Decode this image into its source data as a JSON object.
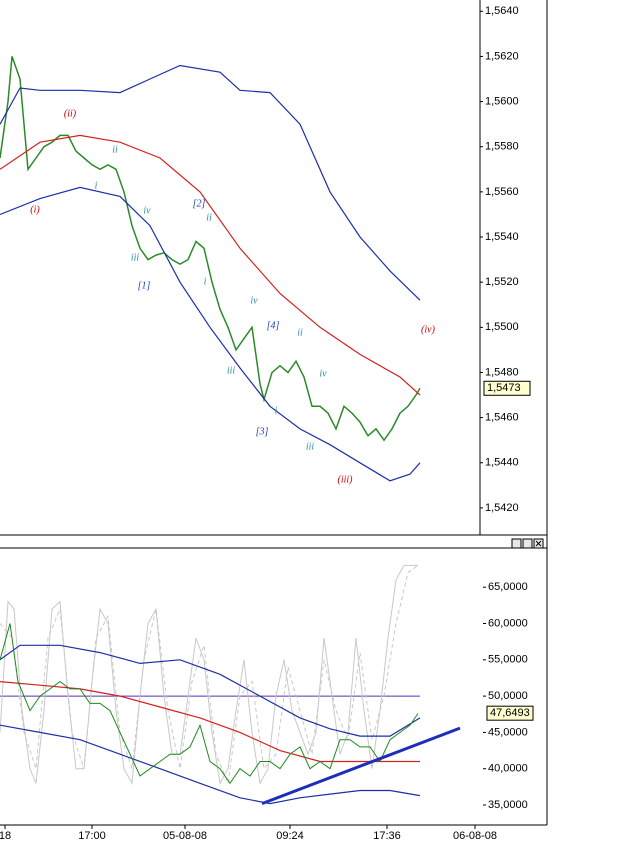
{
  "chart_data": [
    {
      "type": "line",
      "xlim": [
        0,
        480
      ],
      "ylim": [
        1.5408,
        1.5645
      ],
      "yticks": [
        {
          "value": 1.564,
          "label": "1,5640"
        },
        {
          "value": 1.562,
          "label": "1,5620"
        },
        {
          "value": 1.56,
          "label": "1,5600"
        },
        {
          "value": 1.558,
          "label": "1,5580"
        },
        {
          "value": 1.556,
          "label": "1,5560"
        },
        {
          "value": 1.554,
          "label": "1,5540"
        },
        {
          "value": 1.552,
          "label": "1,5520"
        },
        {
          "value": 1.55,
          "label": "1,5500"
        },
        {
          "value": 1.548,
          "label": "1,5480"
        },
        {
          "value": 1.546,
          "label": "1,5460"
        },
        {
          "value": 1.544,
          "label": "1,5440"
        },
        {
          "value": 1.542,
          "label": "1,5420"
        }
      ],
      "series": [
        {
          "color": "#2a8a2a",
          "width": 1.5,
          "x": [
            0,
            8,
            12,
            20,
            28,
            36,
            44,
            52,
            60,
            68,
            76,
            84,
            92,
            100,
            108,
            116,
            124,
            132,
            140,
            148,
            156,
            164,
            172,
            180,
            188,
            196,
            204,
            212,
            220,
            228,
            236,
            244,
            252,
            260,
            264,
            272,
            280,
            288,
            296,
            304,
            312,
            320,
            328,
            336,
            344,
            352,
            360,
            368,
            376,
            384,
            392,
            400,
            408,
            416,
            420
          ],
          "values": [
            1.5575,
            1.56,
            1.562,
            1.561,
            1.557,
            1.5575,
            1.558,
            1.5582,
            1.5585,
            1.5585,
            1.5578,
            1.5575,
            1.5572,
            1.557,
            1.5572,
            1.557,
            1.556,
            1.5545,
            1.5535,
            1.553,
            1.5532,
            1.5533,
            1.553,
            1.5528,
            1.553,
            1.5538,
            1.5535,
            1.552,
            1.5508,
            1.55,
            1.549,
            1.5495,
            1.55,
            1.5475,
            1.5468,
            1.548,
            1.5483,
            1.548,
            1.5485,
            1.5478,
            1.5465,
            1.5465,
            1.5462,
            1.5455,
            1.5465,
            1.5462,
            1.5458,
            1.5452,
            1.5455,
            1.545,
            1.5455,
            1.5462,
            1.5465,
            1.547,
            1.5473
          ]
        },
        {
          "color": "#1c2fa8",
          "width": 1.2,
          "x": [
            0,
            20,
            40,
            80,
            120,
            150,
            180,
            220,
            240,
            270,
            300,
            330,
            360,
            390,
            420
          ],
          "values": [
            1.559,
            1.5606,
            1.5605,
            1.5605,
            1.5604,
            1.561,
            1.5616,
            1.5613,
            1.5605,
            1.5604,
            1.559,
            1.556,
            1.554,
            1.5525,
            1.5512
          ]
        },
        {
          "color": "#d42020",
          "width": 1.2,
          "x": [
            0,
            40,
            80,
            120,
            160,
            200,
            240,
            280,
            320,
            360,
            400,
            420
          ],
          "values": [
            1.557,
            1.5582,
            1.5585,
            1.5582,
            1.5575,
            1.556,
            1.5535,
            1.5515,
            1.55,
            1.5488,
            1.5478,
            1.547
          ]
        },
        {
          "color": "#1c2fa8",
          "width": 1.2,
          "x": [
            0,
            40,
            80,
            120,
            150,
            180,
            210,
            240,
            270,
            300,
            330,
            360,
            390,
            410,
            420
          ],
          "values": [
            1.555,
            1.5557,
            1.5562,
            1.5558,
            1.5545,
            1.552,
            1.55,
            1.5482,
            1.5465,
            1.5455,
            1.5448,
            1.544,
            1.5432,
            1.5435,
            1.544
          ]
        }
      ],
      "last_value": {
        "value": 1.5473,
        "label": "1,5473"
      },
      "annotations": [
        {
          "text": "(i)",
          "color": "#cc0000"
        },
        {
          "text": "(ii)",
          "color": "#cc0000"
        },
        {
          "text": "i",
          "color": "#2b8fa8"
        },
        {
          "text": "ii",
          "color": "#2b8fa8"
        },
        {
          "text": "iii",
          "color": "#2b8fa8"
        },
        {
          "text": "iv",
          "color": "#2b8fa8"
        },
        {
          "text": "[1]",
          "color": "#1f3fbf"
        },
        {
          "text": "[2]",
          "color": "#1f3fbf"
        },
        {
          "text": "ii",
          "color": "#2b8fa8"
        },
        {
          "text": "i",
          "color": "#2b8fa8"
        },
        {
          "text": "iii",
          "color": "#2b8fa8"
        },
        {
          "text": "iv",
          "color": "#2b8fa8"
        },
        {
          "text": "[3]",
          "color": "#1f3fbf"
        },
        {
          "text": "i",
          "color": "#2b8fa8"
        },
        {
          "text": "[4]",
          "color": "#1f3fbf"
        },
        {
          "text": "ii",
          "color": "#2b8fa8"
        },
        {
          "text": "iii",
          "color": "#2b8fa8"
        },
        {
          "text": "iv",
          "color": "#2b8fa8"
        },
        {
          "text": "(iii)",
          "color": "#cc0000"
        },
        {
          "text": "(iv)",
          "color": "#cc0000"
        }
      ]
    },
    {
      "type": "line",
      "xlim": [
        0,
        548
      ],
      "ylim": [
        32.25,
        70.4
      ],
      "yticks": [
        {
          "value": 65,
          "label": "65,0000"
        },
        {
          "value": 60,
          "label": "60,0000"
        },
        {
          "value": 55,
          "label": "55,0000"
        },
        {
          "value": 50,
          "label": "50,0000"
        },
        {
          "value": 45,
          "label": "45,0000"
        },
        {
          "value": 40,
          "label": "40,0000"
        },
        {
          "value": 35,
          "label": "35,0000"
        }
      ],
      "xticks": [
        {
          "value": 5,
          "label": "18"
        },
        {
          "value": 92,
          "label": "17:00"
        },
        {
          "value": 185,
          "label": "05-08-08"
        },
        {
          "value": 290,
          "label": "09:24"
        },
        {
          "value": 387,
          "label": "17:36"
        },
        {
          "value": 475,
          "label": "06-08-08"
        }
      ],
      "hlines": [
        {
          "value": 50,
          "color": "#5a2fb0"
        }
      ],
      "series": [
        {
          "color": "#c8c8c8",
          "width": 1,
          "x": [
            0,
            8,
            14,
            22,
            30,
            36,
            44,
            52,
            60,
            68,
            76,
            84,
            92,
            100,
            108,
            116,
            124,
            132,
            140,
            148,
            156,
            164,
            172,
            180,
            188,
            196,
            204,
            212,
            220,
            228,
            236,
            244,
            252,
            260,
            268,
            276,
            284,
            292,
            300,
            308,
            316,
            324,
            332,
            340,
            348,
            356,
            364,
            372,
            380,
            388,
            396,
            404,
            412,
            418
          ],
          "values": [
            45,
            63,
            62,
            48,
            40,
            38,
            48,
            62,
            63,
            50,
            40,
            40,
            52,
            62,
            60,
            48,
            40,
            38,
            50,
            60,
            62,
            50,
            42,
            42,
            50,
            58,
            55,
            45,
            38,
            40,
            48,
            55,
            45,
            38,
            40,
            50,
            55,
            48,
            45,
            42,
            45,
            58,
            50,
            42,
            45,
            58,
            48,
            40,
            48,
            58,
            66,
            68,
            68,
            68
          ]
        },
        {
          "color": "#c8c8c8",
          "width": 1,
          "style": "dashed",
          "x": [
            0,
            12,
            24,
            36,
            48,
            60,
            72,
            84,
            96,
            108,
            120,
            132,
            144,
            156,
            168,
            180,
            192,
            204,
            216,
            228,
            240,
            252,
            264,
            276,
            288,
            300,
            312,
            324,
            336,
            348,
            360,
            372,
            384,
            396,
            408,
            418
          ],
          "values": [
            60,
            58,
            45,
            40,
            58,
            62,
            45,
            40,
            58,
            61,
            45,
            40,
            55,
            62,
            48,
            40,
            52,
            57,
            42,
            38,
            50,
            52,
            40,
            42,
            54,
            48,
            42,
            55,
            48,
            44,
            56,
            44,
            50,
            60,
            67,
            68
          ]
        },
        {
          "color": "#1c2fa8",
          "width": 1.2,
          "x": [
            0,
            20,
            60,
            100,
            140,
            180,
            220,
            260,
            300,
            330,
            360,
            390,
            420
          ],
          "values": [
            55,
            57,
            57,
            56,
            54.5,
            55,
            53,
            50,
            47,
            45.5,
            44.5,
            44.5,
            47
          ]
        },
        {
          "color": "#d42020",
          "width": 1.2,
          "x": [
            0,
            40,
            80,
            120,
            160,
            200,
            240,
            280,
            320,
            360,
            400,
            420
          ],
          "values": [
            52,
            51.5,
            51,
            50,
            48.5,
            47,
            45,
            42.5,
            41,
            41,
            41,
            41
          ]
        },
        {
          "color": "#1c2fa8",
          "width": 1.2,
          "x": [
            0,
            40,
            80,
            120,
            160,
            200,
            240,
            270,
            300,
            330,
            360,
            390,
            420
          ],
          "values": [
            46,
            45,
            44,
            42,
            40,
            38,
            36,
            35.2,
            36,
            36.5,
            37,
            37,
            36.3
          ]
        },
        {
          "color": "#1e8a1e",
          "width": 1,
          "x": [
            0,
            10,
            18,
            30,
            40,
            50,
            60,
            70,
            80,
            90,
            100,
            110,
            120,
            130,
            140,
            150,
            160,
            170,
            180,
            190,
            200,
            210,
            220,
            230,
            240,
            250,
            260,
            270,
            280,
            290,
            300,
            310,
            320,
            330,
            340,
            350,
            360,
            370,
            380,
            390,
            400,
            410,
            418
          ],
          "values": [
            55,
            60,
            52,
            48,
            50,
            51,
            52,
            51,
            51,
            49,
            49,
            48,
            45,
            42,
            39,
            40,
            41,
            42,
            42,
            43,
            46,
            41,
            40,
            38,
            40,
            39,
            41,
            41,
            40,
            42,
            43,
            40,
            41,
            40,
            44,
            44,
            43,
            43,
            41,
            44,
            45,
            46,
            47.6
          ]
        },
        {
          "color": "#1c2fb8",
          "width": 3,
          "x": [
            262,
            460
          ],
          "values": [
            35.2,
            45.6
          ]
        }
      ],
      "last_value": {
        "value": 47.6493,
        "label": "47,6493"
      }
    }
  ]
}
